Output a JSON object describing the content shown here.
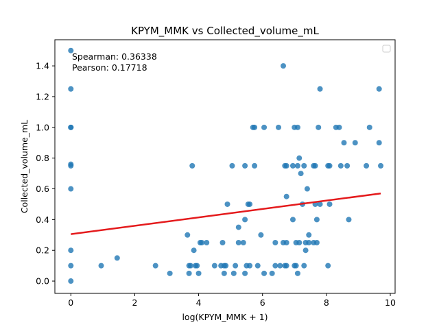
{
  "chart_data": {
    "type": "scatter",
    "title": "KPYM_MMK vs Collected_volume_mL",
    "xlabel": "log(KPYM_MMK + 1)",
    "ylabel": "Collected_volume_mL",
    "xlim": [
      -0.5,
      10.15
    ],
    "ylim": [
      -0.08,
      1.57
    ],
    "x_ticks": [
      0,
      2,
      4,
      6,
      8,
      10
    ],
    "y_ticks": [
      0.0,
      0.2,
      0.4,
      0.6,
      0.8,
      1.0,
      1.2,
      1.4
    ],
    "x_tick_labels": [
      "0",
      "2",
      "4",
      "6",
      "8",
      "10"
    ],
    "y_tick_labels": [
      "0.0",
      "0.2",
      "0.4",
      "0.6",
      "0.8",
      "1.0",
      "1.2",
      "1.4"
    ],
    "annotations": [
      "Spearman: 0.36338",
      "Pearson: 0.17718"
    ],
    "legend": "top-right, empty",
    "grid": false,
    "colors": {
      "points": "#1f77b4",
      "fit_line": "#e41a1c"
    },
    "points": [
      [
        0,
        1.5
      ],
      [
        0,
        1.25
      ],
      [
        0,
        1.0
      ],
      [
        0,
        1.0
      ],
      [
        0,
        0.76
      ],
      [
        0,
        0.75
      ],
      [
        0,
        0.6
      ],
      [
        0,
        0.2
      ],
      [
        0,
        0.1
      ],
      [
        0,
        0.0
      ],
      [
        0.95,
        0.1
      ],
      [
        1.45,
        0.15
      ],
      [
        2.65,
        0.1
      ],
      [
        3.1,
        0.05
      ],
      [
        3.65,
        0.3
      ],
      [
        3.7,
        0.1
      ],
      [
        3.7,
        0.05
      ],
      [
        3.75,
        0.1
      ],
      [
        3.8,
        0.75
      ],
      [
        3.85,
        0.2
      ],
      [
        3.9,
        0.1
      ],
      [
        3.95,
        0.1
      ],
      [
        4.0,
        0.05
      ],
      [
        4.05,
        0.25
      ],
      [
        4.1,
        0.25
      ],
      [
        4.25,
        0.25
      ],
      [
        4.5,
        0.1
      ],
      [
        4.7,
        0.1
      ],
      [
        4.75,
        0.25
      ],
      [
        4.8,
        0.1
      ],
      [
        4.8,
        0.05
      ],
      [
        4.85,
        0.1
      ],
      [
        4.9,
        0.5
      ],
      [
        5.05,
        0.75
      ],
      [
        5.1,
        0.05
      ],
      [
        5.15,
        0.1
      ],
      [
        5.25,
        0.35
      ],
      [
        5.25,
        0.25
      ],
      [
        5.4,
        0.25
      ],
      [
        5.45,
        0.75
      ],
      [
        5.45,
        0.05
      ],
      [
        5.5,
        0.1
      ],
      [
        5.45,
        0.4
      ],
      [
        5.55,
        0.5
      ],
      [
        5.6,
        0.5
      ],
      [
        5.6,
        0.1
      ],
      [
        5.7,
        1.0
      ],
      [
        5.75,
        1.0
      ],
      [
        5.75,
        0.75
      ],
      [
        5.85,
        0.1
      ],
      [
        5.95,
        0.3
      ],
      [
        6.05,
        1.0
      ],
      [
        6.05,
        0.05
      ],
      [
        6.3,
        0.05
      ],
      [
        6.4,
        0.25
      ],
      [
        6.4,
        0.1
      ],
      [
        6.5,
        1.0
      ],
      [
        6.55,
        0.1
      ],
      [
        6.65,
        0.25
      ],
      [
        6.65,
        1.4
      ],
      [
        6.7,
        0.75
      ],
      [
        6.7,
        0.1
      ],
      [
        6.75,
        0.1
      ],
      [
        6.75,
        0.55
      ],
      [
        6.75,
        0.75
      ],
      [
        6.75,
        0.25
      ],
      [
        6.95,
        0.4
      ],
      [
        6.95,
        0.75
      ],
      [
        7.0,
        1.0
      ],
      [
        7.0,
        0.1
      ],
      [
        7.05,
        0.1
      ],
      [
        7.05,
        0.25
      ],
      [
        7.1,
        0.75
      ],
      [
        7.1,
        1.0
      ],
      [
        7.15,
        0.8
      ],
      [
        7.15,
        0.25
      ],
      [
        7.1,
        0.05
      ],
      [
        7.2,
        0.7
      ],
      [
        7.25,
        0.5
      ],
      [
        7.3,
        0.75
      ],
      [
        7.35,
        0.2
      ],
      [
        7.35,
        0.25
      ],
      [
        7.3,
        0.1
      ],
      [
        7.4,
        0.6
      ],
      [
        7.45,
        0.25
      ],
      [
        7.45,
        0.3
      ],
      [
        7.6,
        0.75
      ],
      [
        7.65,
        0.75
      ],
      [
        7.6,
        0.25
      ],
      [
        7.65,
        0.5
      ],
      [
        7.7,
        0.25
      ],
      [
        7.7,
        0.4
      ],
      [
        7.75,
        1.0
      ],
      [
        7.8,
        1.25
      ],
      [
        7.8,
        0.5
      ],
      [
        8.05,
        0.75
      ],
      [
        8.1,
        0.75
      ],
      [
        8.1,
        0.5
      ],
      [
        8.05,
        0.1
      ],
      [
        8.3,
        1.0
      ],
      [
        8.4,
        1.0
      ],
      [
        8.45,
        0.75
      ],
      [
        8.55,
        0.9
      ],
      [
        8.65,
        0.75
      ],
      [
        8.7,
        0.4
      ],
      [
        8.9,
        0.9
      ],
      [
        9.25,
        0.75
      ],
      [
        9.35,
        1.0
      ],
      [
        9.65,
        1.25
      ],
      [
        9.65,
        0.9
      ],
      [
        9.7,
        0.75
      ]
    ],
    "fit_line": {
      "x": [
        0,
        9.7
      ],
      "y": [
        0.305,
        0.57
      ]
    }
  }
}
